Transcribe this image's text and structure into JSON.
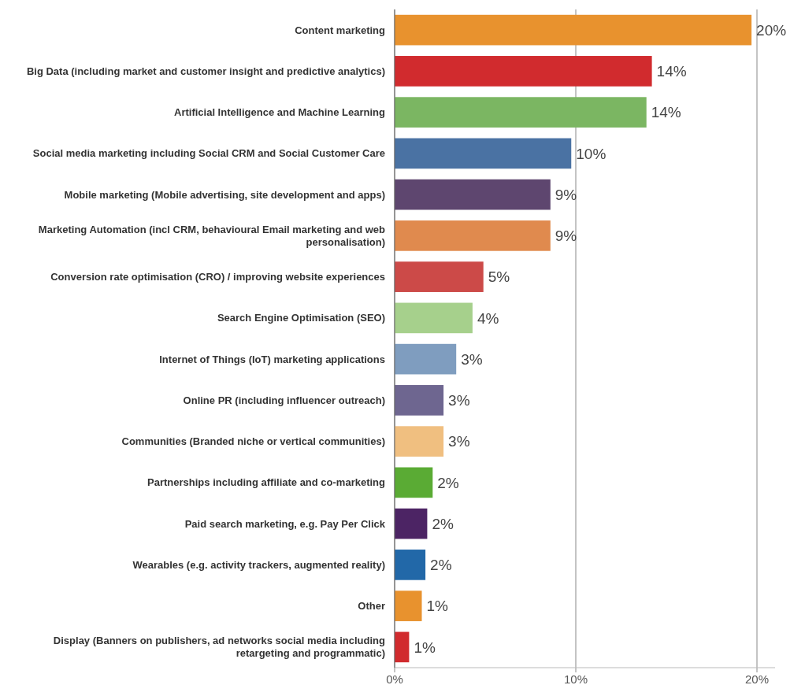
{
  "chart_data": {
    "type": "bar",
    "orientation": "horizontal",
    "categories": [
      "Content marketing",
      "Big Data (including market and customer insight and predictive analytics)",
      "Artificial Intelligence and Machine Learning",
      "Social media marketing including Social CRM and Social Customer Care",
      "Mobile marketing (Mobile advertising, site development and apps)",
      "Marketing Automation (incl CRM, behavioural Email marketing and web personalisation)",
      "Conversion rate optimisation (CRO) / improving website experiences",
      "Search Engine Optimisation (SEO)",
      "Internet of Things (IoT) marketing applications",
      "Online PR (including influencer outreach)",
      "Communities (Branded niche or vertical communities)",
      "Partnerships including affiliate and co-marketing",
      "Paid search marketing, e.g. Pay Per Click",
      "Wearables (e.g. activity trackers, augmented reality)",
      "Other",
      "Display (Banners on publishers, ad networks social media including retargeting and programmatic)"
    ],
    "values": [
      19.7,
      14.2,
      13.9,
      9.75,
      8.6,
      8.6,
      4.9,
      4.3,
      3.4,
      2.7,
      2.7,
      2.1,
      1.8,
      1.7,
      1.5,
      0.8
    ],
    "value_labels": [
      "20%",
      "14%",
      "14%",
      "10%",
      "9%",
      "9%",
      "5%",
      "4%",
      "3%",
      "3%",
      "3%",
      "2%",
      "2%",
      "2%",
      "1%",
      "1%"
    ],
    "colors": [
      "#e8922e",
      "#d12b2e",
      "#7bb662",
      "#4a72a3",
      "#5e466f",
      "#e08a4e",
      "#cc4a48",
      "#a6d08c",
      "#7f9dbf",
      "#6e6690",
      "#f0bf80",
      "#5aab34",
      "#4c2464",
      "#2268a8",
      "#e8922e",
      "#d12b2e"
    ],
    "xlim": [
      0,
      21
    ],
    "xticks": [
      {
        "value": 0,
        "label": "0%"
      },
      {
        "value": 10,
        "label": "10%"
      },
      {
        "value": 20,
        "label": "20%"
      }
    ],
    "grid": "x"
  }
}
